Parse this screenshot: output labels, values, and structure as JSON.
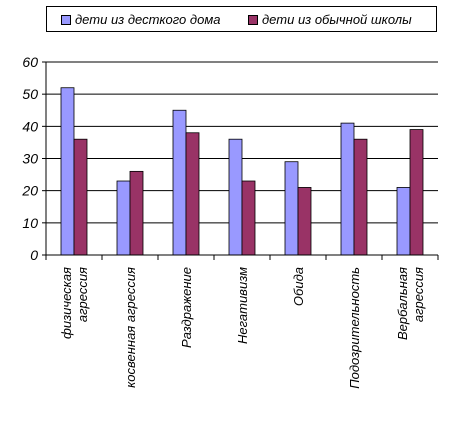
{
  "chart_data": {
    "type": "bar",
    "categories": [
      [
        "физическая",
        "агрессия"
      ],
      [
        "косвенная агрессия"
      ],
      [
        "Раздражение"
      ],
      [
        "Негативизм"
      ],
      [
        "Обида"
      ],
      [
        "Подозрительность"
      ],
      [
        "Вербальная",
        "агрессия"
      ]
    ],
    "series": [
      {
        "name": "дети из десткого дома",
        "color": "#9999ff",
        "values": [
          52,
          23,
          45,
          36,
          29,
          41,
          21
        ]
      },
      {
        "name": "дети из обычной школы",
        "color": "#993366",
        "values": [
          36,
          26,
          38,
          23,
          21,
          36,
          39
        ]
      }
    ],
    "ylim": [
      0,
      60
    ],
    "yticks": [
      0,
      10,
      20,
      30,
      40,
      50,
      60
    ],
    "grid": true,
    "legend_position": "top",
    "title": "",
    "xlabel": "",
    "ylabel": ""
  }
}
